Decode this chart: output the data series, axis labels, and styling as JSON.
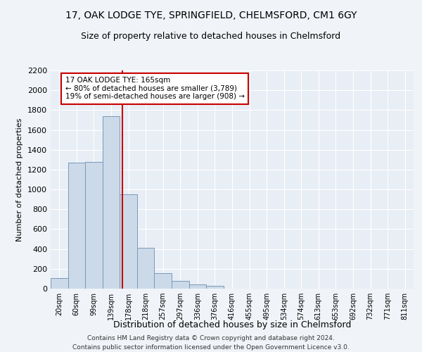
{
  "title": "17, OAK LODGE TYE, SPRINGFIELD, CHELMSFORD, CM1 6GY",
  "subtitle": "Size of property relative to detached houses in Chelmsford",
  "xlabel": "Distribution of detached houses by size in Chelmsford",
  "ylabel": "Number of detached properties",
  "footer_line1": "Contains HM Land Registry data © Crown copyright and database right 2024.",
  "footer_line2": "Contains public sector information licensed under the Open Government Licence v3.0.",
  "categories": [
    "20sqm",
    "60sqm",
    "99sqm",
    "139sqm",
    "178sqm",
    "218sqm",
    "257sqm",
    "297sqm",
    "336sqm",
    "376sqm",
    "416sqm",
    "455sqm",
    "495sqm",
    "534sqm",
    "574sqm",
    "613sqm",
    "653sqm",
    "692sqm",
    "732sqm",
    "771sqm",
    "811sqm"
  ],
  "bar_values": [
    110,
    1270,
    1280,
    1740,
    950,
    415,
    155,
    75,
    40,
    25,
    0,
    0,
    0,
    0,
    0,
    0,
    0,
    0,
    0,
    0,
    0
  ],
  "bar_color": "#ccd9e8",
  "bar_edge_color": "#7799bb",
  "vline_color": "#cc0000",
  "annotation_text": "17 OAK LODGE TYE: 165sqm\n← 80% of detached houses are smaller (3,789)\n19% of semi-detached houses are larger (908) →",
  "annotation_box_color": "#cc0000",
  "annotation_box_fill": "#ffffff",
  "ylim": [
    0,
    2200
  ],
  "yticks": [
    0,
    200,
    400,
    600,
    800,
    1000,
    1200,
    1400,
    1600,
    1800,
    2000,
    2200
  ],
  "bg_color": "#f0f4f8",
  "plot_bg_color": "#e8eef5",
  "title_fontsize": 10,
  "subtitle_fontsize": 9
}
